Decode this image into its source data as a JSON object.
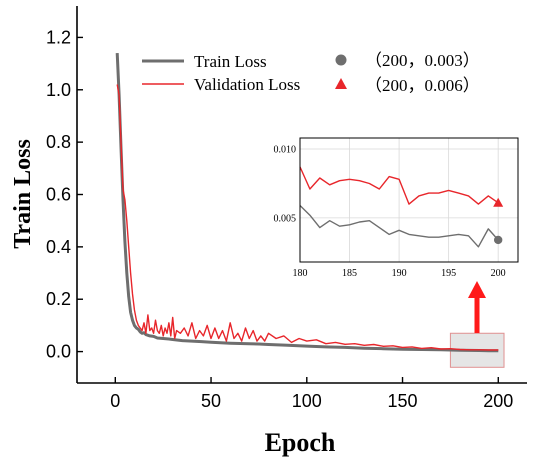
{
  "chart_data": [
    {
      "type": "line",
      "xlabel": "Epoch",
      "ylabel": "Train Loss",
      "xlim": [
        -20,
        215
      ],
      "ylim": [
        -0.12,
        1.32
      ],
      "xticks": [
        0,
        50,
        100,
        150,
        200
      ],
      "yticks": [
        0.0,
        0.2,
        0.4,
        0.6,
        0.8,
        1.0,
        1.2
      ],
      "xtick_labels": [
        "0",
        "50",
        "100",
        "150",
        "200"
      ],
      "ytick_labels": [
        "0.0",
        "0.2",
        "0.4",
        "0.6",
        "0.8",
        "1.0",
        "1.2"
      ],
      "legend_position": "top-center",
      "series": [
        {
          "name": "Train Loss",
          "color": "#6e6e6e",
          "x": [
            1,
            2,
            3,
            4,
            5,
            6,
            7,
            8,
            9,
            10,
            11,
            12,
            13,
            14,
            15,
            16,
            18,
            20,
            22,
            25,
            28,
            30,
            35,
            40,
            45,
            50,
            55,
            60,
            65,
            70,
            75,
            80,
            90,
            100,
            110,
            120,
            130,
            140,
            150,
            160,
            170,
            175,
            180,
            185,
            190,
            195,
            200
          ],
          "y": [
            1.14,
            0.98,
            0.78,
            0.58,
            0.42,
            0.3,
            0.21,
            0.15,
            0.12,
            0.1,
            0.09,
            0.085,
            0.075,
            0.07,
            0.072,
            0.065,
            0.06,
            0.058,
            0.052,
            0.05,
            0.048,
            0.046,
            0.042,
            0.04,
            0.038,
            0.036,
            0.034,
            0.032,
            0.031,
            0.03,
            0.029,
            0.027,
            0.024,
            0.021,
            0.018,
            0.016,
            0.013,
            0.011,
            0.009,
            0.008,
            0.007,
            0.006,
            0.005,
            0.0045,
            0.004,
            0.0035,
            0.003
          ]
        },
        {
          "name": "Validation Loss",
          "color": "#e8262b",
          "x": [
            1,
            2,
            3,
            4,
            5,
            6,
            7,
            8,
            9,
            10,
            11,
            12,
            13,
            14,
            15,
            16,
            17,
            18,
            19,
            20,
            21,
            22,
            23,
            24,
            25,
            26,
            27,
            28,
            29,
            30,
            31,
            32,
            34,
            36,
            38,
            40,
            42,
            44,
            46,
            48,
            50,
            52,
            54,
            56,
            58,
            60,
            62,
            64,
            66,
            68,
            70,
            72,
            74,
            76,
            78,
            80,
            84,
            88,
            92,
            96,
            100,
            105,
            110,
            115,
            120,
            125,
            130,
            135,
            140,
            145,
            150,
            155,
            160,
            165,
            170,
            175,
            180,
            185,
            190,
            195,
            200
          ],
          "y": [
            1.02,
            0.98,
            0.8,
            0.62,
            0.58,
            0.5,
            0.4,
            0.3,
            0.22,
            0.16,
            0.12,
            0.1,
            0.09,
            0.08,
            0.11,
            0.07,
            0.14,
            0.08,
            0.09,
            0.07,
            0.12,
            0.08,
            0.07,
            0.1,
            0.06,
            0.09,
            0.07,
            0.11,
            0.06,
            0.13,
            0.05,
            0.08,
            0.07,
            0.09,
            0.06,
            0.11,
            0.05,
            0.08,
            0.06,
            0.1,
            0.05,
            0.09,
            0.05,
            0.08,
            0.04,
            0.11,
            0.05,
            0.07,
            0.04,
            0.09,
            0.05,
            0.08,
            0.04,
            0.06,
            0.04,
            0.07,
            0.05,
            0.06,
            0.035,
            0.05,
            0.04,
            0.045,
            0.03,
            0.035,
            0.028,
            0.03,
            0.024,
            0.027,
            0.02,
            0.022,
            0.016,
            0.018,
            0.012,
            0.015,
            0.01,
            0.011,
            0.008,
            0.007,
            0.007,
            0.006,
            0.006
          ]
        }
      ],
      "end_markers": [
        {
          "label": "（200，0.003）",
          "x": 200,
          "y": 0.003,
          "shape": "circle",
          "color": "#6e6e6e"
        },
        {
          "label": "（200，0.006）",
          "x": 200,
          "y": 0.006,
          "shape": "triangle",
          "color": "#e8262b"
        }
      ],
      "highlight_region": {
        "x": [
          175,
          203
        ],
        "y": [
          -0.06,
          0.07
        ],
        "fill": "#dcdcdc",
        "stroke": "#e09090"
      },
      "arrow_color": "#ff1a1a"
    },
    {
      "type": "line",
      "role": "inset-zoom",
      "xlim": [
        180,
        202
      ],
      "ylim": [
        0.0018,
        0.0108
      ],
      "xticks": [
        180,
        185,
        190,
        195,
        200
      ],
      "yticks": [
        0.005,
        0.01
      ],
      "xtick_labels": [
        "180",
        "185",
        "190",
        "195",
        "200"
      ],
      "ytick_labels": [
        "0.005",
        "0.010"
      ],
      "grid": true,
      "series": [
        {
          "name": "Train Loss",
          "color": "#6e6e6e",
          "x": [
            180,
            181,
            182,
            183,
            184,
            185,
            186,
            187,
            188,
            189,
            190,
            191,
            192,
            193,
            194,
            195,
            196,
            197,
            198,
            199,
            200
          ],
          "y": [
            0.0059,
            0.0052,
            0.0043,
            0.0048,
            0.0044,
            0.0045,
            0.0047,
            0.0048,
            0.0043,
            0.0038,
            0.0041,
            0.0038,
            0.0037,
            0.0036,
            0.0036,
            0.0037,
            0.0038,
            0.0037,
            0.0029,
            0.0042,
            0.0034
          ]
        },
        {
          "name": "Validation Loss",
          "color": "#e8262b",
          "x": [
            180,
            181,
            182,
            183,
            184,
            185,
            186,
            187,
            188,
            189,
            190,
            191,
            192,
            193,
            194,
            195,
            196,
            197,
            198,
            199,
            200
          ],
          "y": [
            0.0087,
            0.0071,
            0.0079,
            0.0074,
            0.0077,
            0.0078,
            0.0077,
            0.0075,
            0.0071,
            0.008,
            0.0078,
            0.006,
            0.0066,
            0.0068,
            0.0068,
            0.007,
            0.0068,
            0.0066,
            0.006,
            0.0066,
            0.0061
          ]
        }
      ],
      "end_markers": [
        {
          "x": 200,
          "y": 0.0034,
          "shape": "circle",
          "color": "#6e6e6e"
        },
        {
          "x": 200,
          "y": 0.0061,
          "shape": "triangle",
          "color": "#e8262b"
        }
      ]
    }
  ]
}
